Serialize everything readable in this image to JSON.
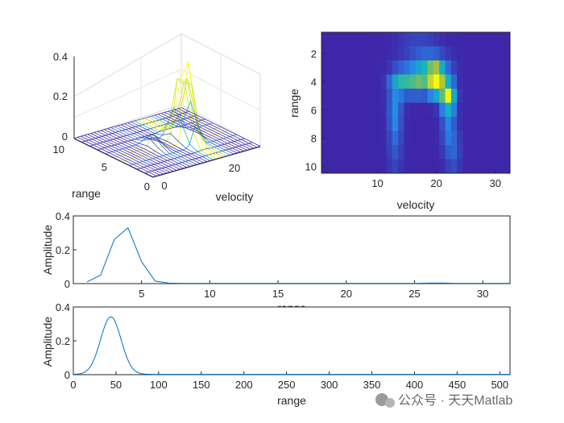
{
  "watermark": {
    "text": "公众号 · 天天Matlab"
  },
  "colors": {
    "axis": "#262626",
    "line": "#0072bd",
    "mesh": "#1a1a8a",
    "grid": "#e6e6e6"
  },
  "chart_data": [
    {
      "id": "surface3d",
      "type": "surface",
      "xlabel": "velocity",
      "ylabel": "range",
      "zlabel": "",
      "xticks": [
        "0",
        "20"
      ],
      "yticks": [
        "0",
        "5",
        "10"
      ],
      "zticks": [
        "0",
        "0.2",
        "0.4"
      ],
      "xlim": [
        0,
        32
      ],
      "ylim": [
        0,
        10
      ],
      "zlim": [
        0,
        0.4
      ],
      "peaks": [
        {
          "x": 20,
          "y": 4,
          "z": 0.33
        },
        {
          "x": 19,
          "y": 5,
          "z": 0.22
        },
        {
          "x": 22,
          "y": 5,
          "z": 0.26
        },
        {
          "x": 12,
          "y": 5,
          "z": 0.06
        }
      ]
    },
    {
      "id": "heatmap",
      "type": "heatmap",
      "xlabel": "velocity",
      "ylabel": "range",
      "xticks": [
        "10",
        "20",
        "30"
      ],
      "yticks": [
        "2",
        "4",
        "6",
        "8",
        "10"
      ],
      "xlim": [
        0.5,
        32.5
      ],
      "ylim": [
        0.5,
        10.5
      ],
      "blobs": [
        {
          "x": 20,
          "y": 4,
          "v": 1.0,
          "sx": 0.9,
          "sy": 0.7
        },
        {
          "x": 22,
          "y": 5,
          "v": 0.85,
          "sx": 0.8,
          "sy": 0.7
        },
        {
          "x": 17,
          "y": 4,
          "v": 0.55,
          "sx": 1.4,
          "sy": 0.6
        },
        {
          "x": 14,
          "y": 4,
          "v": 0.45,
          "sx": 1.3,
          "sy": 0.6
        },
        {
          "x": 19,
          "y": 3,
          "v": 0.4,
          "sx": 2.0,
          "sy": 0.6
        },
        {
          "x": 13,
          "y": 6,
          "v": 0.25,
          "sx": 0.8,
          "sy": 1.2
        },
        {
          "x": 22,
          "y": 7,
          "v": 0.22,
          "sx": 0.8,
          "sy": 1.5
        },
        {
          "x": 13,
          "y": 8.5,
          "v": 0.13,
          "sx": 0.8,
          "sy": 1.5
        },
        {
          "x": 23,
          "y": 9,
          "v": 0.12,
          "sx": 0.8,
          "sy": 1.2
        },
        {
          "x": 17,
          "y": 1.5,
          "v": 0.1,
          "sx": 2.5,
          "sy": 0.8
        }
      ]
    },
    {
      "id": "range-profile-32",
      "type": "line",
      "xlabel": "range",
      "ylabel": "Amplitude",
      "xlim": [
        0,
        32
      ],
      "ylim": [
        0,
        0.4
      ],
      "xticks": [
        "5",
        "10",
        "15",
        "20",
        "25",
        "30"
      ],
      "yticks": [
        "0",
        "0.2",
        "0.4"
      ],
      "x": [
        1,
        2,
        3,
        4,
        5,
        6,
        7,
        8,
        9,
        10,
        11,
        12,
        13,
        14,
        15,
        16,
        17,
        18,
        19,
        20,
        21,
        22,
        23,
        24,
        25,
        26,
        27,
        28,
        29,
        30,
        31,
        32
      ],
      "y": [
        0.01,
        0.05,
        0.26,
        0.33,
        0.13,
        0.015,
        0.003,
        0.002,
        0.002,
        0.002,
        0.002,
        0.002,
        0.002,
        0.002,
        0.002,
        0.002,
        0.002,
        0.002,
        0.002,
        0.002,
        0.002,
        0.002,
        0.002,
        0.002,
        0.002,
        0.003,
        0.004,
        0.002,
        0.002,
        0.002,
        0.002,
        0.002
      ]
    },
    {
      "id": "range-profile-512",
      "type": "line",
      "xlabel": "range",
      "ylabel": "Amplitude",
      "xlim": [
        0,
        512
      ],
      "ylim": [
        0,
        0.4
      ],
      "xticks": [
        "0",
        "50",
        "100",
        "150",
        "200",
        "250",
        "300",
        "350",
        "400",
        "450",
        "500"
      ],
      "yticks": [
        "0",
        "0.2",
        "0.4"
      ],
      "peak": {
        "x": 44,
        "y": 0.34,
        "sigma": 12
      }
    }
  ]
}
